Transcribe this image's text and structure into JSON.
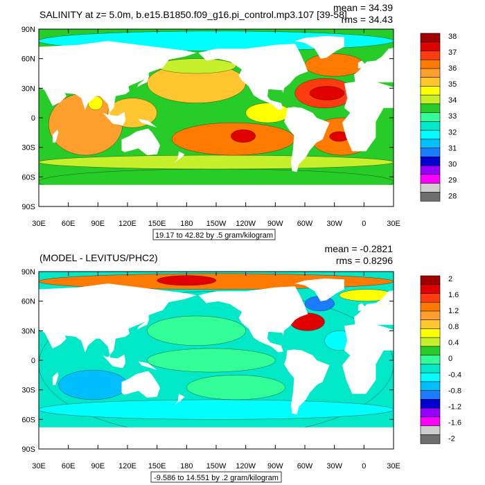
{
  "chart_data": [
    {
      "type": "heatmap",
      "title": "SALINITY at z=   5.0m, b.e15.B1850.f09_g16.pi_control.mp3.107 [39-58]",
      "stats": [
        "mean = 34.39",
        "rms = 34.43"
      ],
      "xlabel": "",
      "ylabel": "",
      "x_ticks": [
        "30E",
        "60E",
        "90E",
        "120E",
        "150E",
        "180",
        "150W",
        "120W",
        "90W",
        "60W",
        "30W",
        "0",
        "30E"
      ],
      "y_ticks": [
        "90N",
        "60N",
        "30N",
        "0",
        "30S",
        "60S",
        "90S"
      ],
      "x_range": [
        30,
        390
      ],
      "y_range": [
        -90,
        90
      ],
      "contour_info": "19.17 to 42.82 by .5 gram/kilogram",
      "colorbar": {
        "labels": [
          "38",
          "37",
          "36",
          "35",
          "34",
          "33",
          "32",
          "31",
          "30",
          "29",
          "28"
        ],
        "colors": [
          "#a00000",
          "#e00000",
          "#ff3b10",
          "#ff7a00",
          "#ff9f2e",
          "#ffc62f",
          "#ffff00",
          "#c6f02c",
          "#28cc28",
          "#33ff99",
          "#00e8c8",
          "#00ffff",
          "#00bfff",
          "#1c7cff",
          "#0000d2",
          "#9600ff",
          "#ff00ff",
          "#cfcfcf",
          "#6e6e6e"
        ]
      },
      "regions": [
        {
          "name": "Arctic",
          "lon": [
            30,
            390
          ],
          "lat": [
            68,
            88
          ],
          "color": "#00ffff"
        },
        {
          "name": "Southern Ocean",
          "lon": [
            30,
            390
          ],
          "lat": [
            -78,
            -52
          ],
          "color": "#28cc28"
        },
        {
          "name": "Sub-polar south band",
          "lon": [
            30,
            390
          ],
          "lat": [
            -52,
            -38
          ],
          "color": "#c6f02c"
        },
        {
          "name": "Indian Ocean",
          "lon": [
            40,
            115
          ],
          "lat": [
            -38,
            25
          ],
          "color": "#ff9f2e"
        },
        {
          "name": "Bay of Bengal",
          "lon": [
            80,
            95
          ],
          "lat": [
            8,
            22
          ],
          "color": "#ffff00"
        },
        {
          "name": "West Pacific warm pool",
          "lon": [
            100,
            150
          ],
          "lat": [
            -10,
            20
          ],
          "color": "#ffc62f"
        },
        {
          "name": "North Pacific",
          "lon": [
            140,
            240
          ],
          "lat": [
            15,
            55
          ],
          "color": "#ffc62f"
        },
        {
          "name": "North Pacific subarctic",
          "lon": [
            150,
            230
          ],
          "lat": [
            45,
            60
          ],
          "color": "#c6f02c"
        },
        {
          "name": "Equatorial East Pacific",
          "lon": [
            240,
            285
          ],
          "lat": [
            -5,
            15
          ],
          "color": "#ffff00"
        },
        {
          "name": "South Pacific gyre",
          "lon": [
            165,
            290
          ],
          "lat": [
            -38,
            -5
          ],
          "color": "#ff7a00"
        },
        {
          "name": "South Pacific salinity max",
          "lon": [
            225,
            250
          ],
          "lat": [
            -25,
            -12
          ],
          "color": "#e00000"
        },
        {
          "name": "North Atlantic gyre",
          "lon": [
            290,
            350
          ],
          "lat": [
            10,
            40
          ],
          "color": "#ff3b10"
        },
        {
          "name": "North Atlantic salinity max",
          "lon": [
            305,
            340
          ],
          "lat": [
            18,
            32
          ],
          "color": "#e00000"
        },
        {
          "name": "North Atlantic subpolar",
          "lon": [
            300,
            360
          ],
          "lat": [
            42,
            65
          ],
          "color": "#ff7a00"
        },
        {
          "name": "South Atlantic",
          "lon": [
            305,
            370
          ],
          "lat": [
            -38,
            0
          ],
          "color": "#ff7a00"
        },
        {
          "name": "South Atlantic salinity max",
          "lon": [
            325,
            345
          ],
          "lat": [
            -24,
            -14
          ],
          "color": "#e00000"
        }
      ]
    },
    {
      "type": "heatmap",
      "title": "(MODEL - LEVITUS/PHC2)",
      "stats": [
        "mean = -0.2821",
        "rms = 0.8296"
      ],
      "xlabel": "",
      "ylabel": "",
      "x_ticks": [
        "30E",
        "60E",
        "90E",
        "120E",
        "150E",
        "180",
        "150W",
        "120W",
        "90W",
        "60W",
        "30W",
        "0",
        "30E"
      ],
      "y_ticks": [
        "90N",
        "60N",
        "30N",
        "0",
        "30S",
        "60S",
        "90S"
      ],
      "x_range": [
        30,
        390
      ],
      "y_range": [
        -90,
        90
      ],
      "contour_info": "-9.586 to 14.551 by .2 gram/kilogram",
      "colorbar": {
        "labels": [
          "2",
          "1.6",
          "1.2",
          "0.8",
          "0.4",
          "0",
          "-0.4",
          "-0.8",
          "-1.2",
          "-1.6",
          "-2"
        ],
        "colors": [
          "#a00000",
          "#e00000",
          "#ff3b10",
          "#ff7a00",
          "#ff9f2e",
          "#ffc62f",
          "#ffff00",
          "#c6f02c",
          "#28cc28",
          "#33ff99",
          "#00e8c8",
          "#00ffff",
          "#00bfff",
          "#1c7cff",
          "#0000d2",
          "#9600ff",
          "#ff00ff",
          "#cfcfcf",
          "#6e6e6e"
        ]
      },
      "regions": [
        {
          "name": "Global ocean",
          "lon": [
            30,
            390
          ],
          "lat": [
            -78,
            70
          ],
          "color": "#00e8c8"
        },
        {
          "name": "Arctic",
          "lon": [
            30,
            390
          ],
          "lat": [
            72,
            88
          ],
          "color": "#ff7a00"
        },
        {
          "name": "Arctic Siberian shelf",
          "lon": [
            150,
            210
          ],
          "lat": [
            76,
            86
          ],
          "color": "#e00000"
        },
        {
          "name": "Southern band",
          "lon": [
            30,
            390
          ],
          "lat": [
            -60,
            -40
          ],
          "color": "#00ffff"
        },
        {
          "name": "Indian Ocean south",
          "lon": [
            50,
            120
          ],
          "lat": [
            -40,
            -10
          ],
          "color": "#00bfff"
        },
        {
          "name": "Equatorial Pacific",
          "lon": [
            140,
            270
          ],
          "lat": [
            -12,
            12
          ],
          "color": "#33ff99"
        },
        {
          "name": "North Pacific",
          "lon": [
            140,
            240
          ],
          "lat": [
            15,
            45
          ],
          "color": "#33ff99"
        },
        {
          "name": "South Pacific",
          "lon": [
            180,
            280
          ],
          "lat": [
            -40,
            -15
          ],
          "color": "#33ff99"
        },
        {
          "name": "Gulf Stream extension",
          "lon": [
            285,
            320
          ],
          "lat": [
            30,
            48
          ],
          "color": "#e00000"
        },
        {
          "name": "Labrador Sea",
          "lon": [
            300,
            330
          ],
          "lat": [
            50,
            65
          ],
          "color": "#1c7cff"
        },
        {
          "name": "Nordic Seas",
          "lon": [
            335,
            390
          ],
          "lat": [
            60,
            72
          ],
          "color": "#ffff00"
        },
        {
          "name": "Subtropical North Atlantic",
          "lon": [
            320,
            350
          ],
          "lat": [
            10,
            30
          ],
          "color": "#00ffff"
        }
      ]
    }
  ]
}
